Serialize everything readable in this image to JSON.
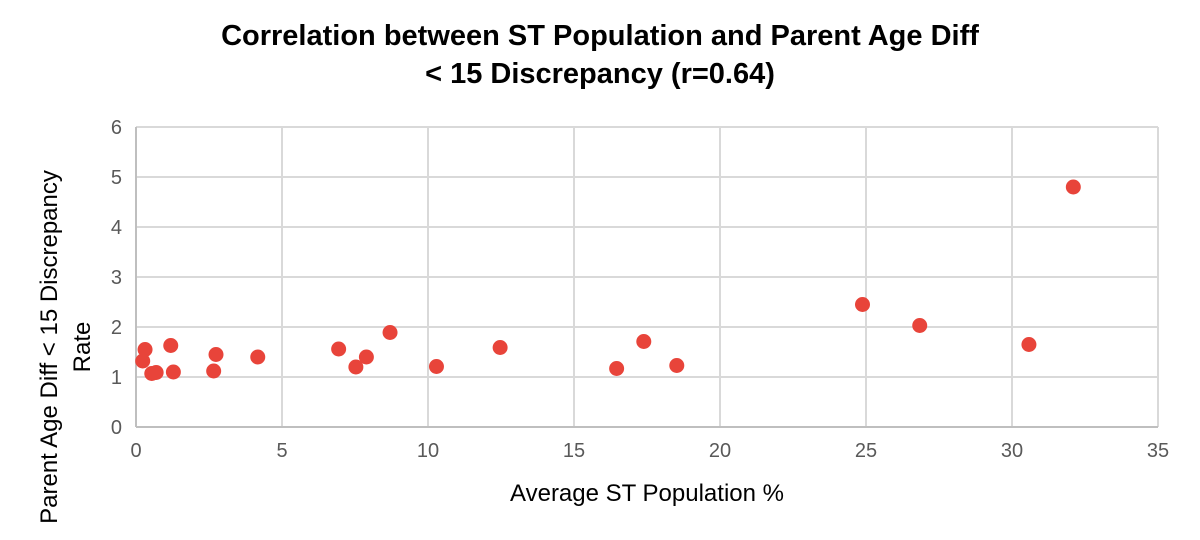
{
  "chart_data": {
    "type": "scatter",
    "title": [
      "Correlation between ST Population and Parent Age Diff",
      "< 15 Discrepancy (r=0.64)"
    ],
    "xlabel": "Average ST Population %",
    "ylabel": [
      "Parent Age Diff < 15  Discrepancy",
      "Rate"
    ],
    "xlim": [
      0,
      35
    ],
    "ylim": [
      0,
      6
    ],
    "xticks": [
      "0",
      "5",
      "10",
      "15",
      "20",
      "25",
      "30",
      "35"
    ],
    "yticks": [
      "0",
      "1",
      "2",
      "3",
      "4",
      "5",
      "6"
    ],
    "grid": true,
    "marker_color": "#e8443a",
    "points": [
      [
        0.31,
        1.55
      ],
      [
        0.23,
        1.32
      ],
      [
        1.19,
        1.63
      ],
      [
        0.54,
        1.07
      ],
      [
        0.69,
        1.09
      ],
      [
        1.28,
        1.1
      ],
      [
        2.74,
        1.45
      ],
      [
        2.66,
        1.12
      ],
      [
        4.17,
        1.4
      ],
      [
        6.94,
        1.56
      ],
      [
        7.53,
        1.2
      ],
      [
        7.89,
        1.4
      ],
      [
        8.7,
        1.89
      ],
      [
        10.29,
        1.21
      ],
      [
        12.47,
        1.59
      ],
      [
        16.46,
        1.17
      ],
      [
        17.39,
        1.71
      ],
      [
        18.52,
        1.23
      ],
      [
        24.88,
        2.45
      ],
      [
        26.84,
        2.03
      ],
      [
        30.58,
        1.65
      ],
      [
        32.1,
        4.8
      ]
    ]
  }
}
